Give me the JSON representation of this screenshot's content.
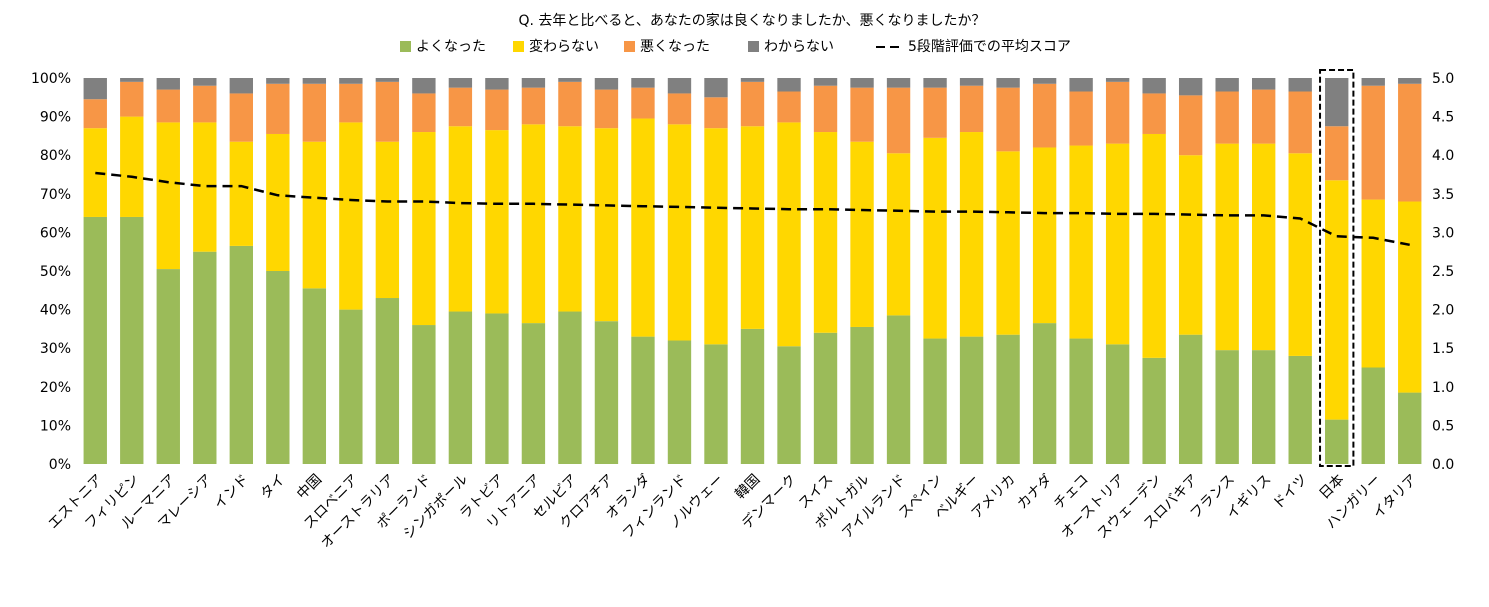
{
  "chart_data": {
    "type": "bar",
    "stacked": true,
    "title": "Q. 去年と比べると、あなたの家は良くなりましたか、悪くなりましたか？",
    "legend_position": "top",
    "grid": false,
    "categories": [
      "エストニア",
      "フィリピン",
      "ルーマニア",
      "マレーシア",
      "インド",
      "タイ",
      "中国",
      "スロベニア",
      "オーストラリア",
      "ポーランド",
      "シンガポール",
      "ラトビア",
      "リトアニア",
      "セルビア",
      "クロアチア",
      "オランダ",
      "フィンランド",
      "ノルウェー",
      "韓国",
      "デンマーク",
      "スイス",
      "ポルトガル",
      "アイルランド",
      "スペイン",
      "ベルギー",
      "アメリカ",
      "カナダ",
      "チェコ",
      "オーストリア",
      "スウェーデン",
      "スロバキア",
      "フランス",
      "イギリス",
      "ドイツ",
      "日本",
      "ハンガリー",
      "イタリア"
    ],
    "highlight_category": "日本",
    "series": [
      {
        "name": "よくなった",
        "color": "#9BBB59",
        "values": [
          64,
          64,
          50.5,
          55,
          56.5,
          50,
          45.5,
          40,
          43,
          36,
          39.5,
          39,
          36.5,
          39.5,
          37,
          33,
          32,
          31,
          35,
          30.5,
          34,
          35.5,
          38.5,
          32.5,
          33,
          33.5,
          36.5,
          32.5,
          31,
          27.5,
          33.5,
          29.5,
          29.5,
          28,
          11.5,
          25,
          18.5
        ]
      },
      {
        "name": "変わらない",
        "color": "#FFD700",
        "values": [
          23,
          26,
          38,
          33.5,
          27,
          35.5,
          38,
          48.5,
          40.5,
          50,
          48,
          47.5,
          51.5,
          48,
          50,
          56.5,
          56,
          56,
          52.5,
          58,
          52,
          48,
          42,
          52,
          53,
          47.5,
          45.5,
          50,
          52,
          58,
          46.5,
          53.5,
          53.5,
          52.5,
          62,
          43.5,
          49.5
        ]
      },
      {
        "name": "悪くなった",
        "color": "#F79646",
        "values": [
          7.5,
          9,
          8.5,
          9.5,
          12.5,
          13,
          15,
          10,
          15.5,
          10,
          10,
          10.5,
          9.5,
          11.5,
          10,
          8,
          8,
          8,
          11.5,
          8,
          12,
          14,
          17,
          13,
          12,
          16.5,
          16.5,
          14,
          16,
          10.5,
          15.5,
          13.5,
          14,
          16,
          14,
          29.5,
          30.5
        ]
      },
      {
        "name": "わからない",
        "color": "#808080",
        "values": [
          5.5,
          1,
          3,
          2,
          4,
          1.5,
          1.5,
          1.5,
          1,
          4,
          2.5,
          3,
          2.5,
          1,
          3,
          2.5,
          4,
          5,
          1,
          3.5,
          2,
          2.5,
          2.5,
          2.5,
          2,
          2.5,
          1.5,
          3.5,
          1,
          4,
          4.5,
          3.5,
          3,
          3.5,
          12.5,
          2,
          1.5
        ]
      }
    ],
    "line_series": {
      "name": "5段階評価での平均スコア",
      "color": "#000000",
      "style": "dashed",
      "axis": "right",
      "values": [
        3.77,
        3.72,
        3.65,
        3.6,
        3.6,
        3.48,
        3.45,
        3.42,
        3.4,
        3.4,
        3.38,
        3.37,
        3.37,
        3.36,
        3.35,
        3.34,
        3.33,
        3.32,
        3.31,
        3.3,
        3.3,
        3.29,
        3.28,
        3.27,
        3.27,
        3.26,
        3.25,
        3.25,
        3.24,
        3.24,
        3.23,
        3.22,
        3.22,
        3.18,
        2.95,
        2.93,
        2.84
      ]
    },
    "y_left": {
      "min": 0,
      "max": 100,
      "ticks": [
        "0%",
        "10%",
        "20%",
        "30%",
        "40%",
        "50%",
        "60%",
        "70%",
        "80%",
        "90%",
        "100%"
      ]
    },
    "y_right": {
      "min": 0,
      "max": 5,
      "ticks": [
        "0.0",
        "0.5",
        "1.0",
        "1.5",
        "2.0",
        "2.5",
        "3.0",
        "3.5",
        "4.0",
        "4.5",
        "5.0"
      ]
    }
  }
}
